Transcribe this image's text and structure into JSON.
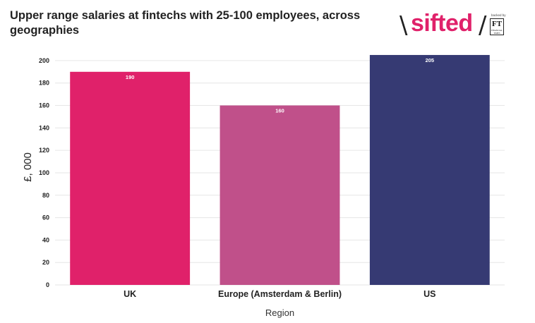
{
  "brand": {
    "name": "sifted",
    "backed_by": "backed by",
    "partner": "FT",
    "partner_sub": "FINANCIAL TIMES"
  },
  "chart_data": {
    "type": "bar",
    "title": "Upper range salaries at fintechs with 25-100 employees, across geographies",
    "xlabel": "Region",
    "ylabel": "£, 000",
    "categories": [
      "UK",
      "Europe (Amsterdam & Berlin)",
      "US"
    ],
    "values": [
      190,
      160,
      205
    ],
    "colors": [
      "#e0216a",
      "#c0508a",
      "#363a73"
    ],
    "ylim": [
      0,
      210
    ],
    "yticks": [
      0,
      20,
      40,
      60,
      80,
      100,
      120,
      140,
      160,
      180,
      200
    ],
    "grid": true,
    "data_labels": [
      "190",
      "160",
      "205"
    ]
  }
}
